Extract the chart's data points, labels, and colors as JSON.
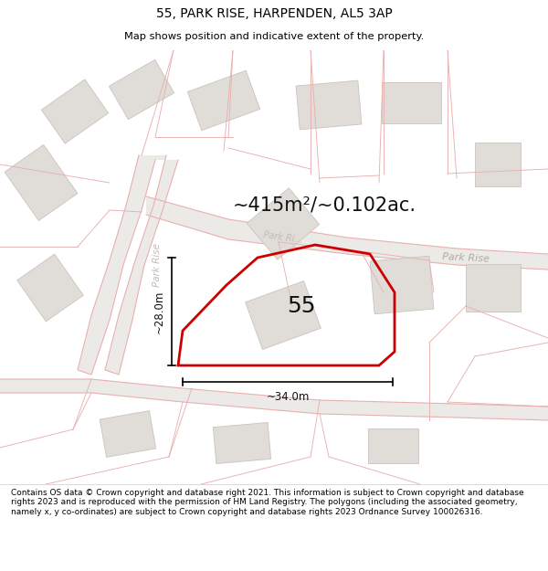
{
  "title": "55, PARK RISE, HARPENDEN, AL5 3AP",
  "subtitle": "Map shows position and indicative extent of the property.",
  "footer": "Contains OS data © Crown copyright and database right 2021. This information is subject to Crown copyright and database rights 2023 and is reproduced with the permission of HM Land Registry. The polygons (including the associated geometry, namely x, y co-ordinates) are subject to Crown copyright and database rights 2023 Ordnance Survey 100026316.",
  "area_label": "~415m²/~0.102ac.",
  "number_label": "55",
  "width_label": "~34.0m",
  "height_label": "~28.0m",
  "road_label_diag": "Park Ri...",
  "road_label_right": "Park Rise",
  "road_label_vert": "Park Rise",
  "map_bg": "#f7f6f4",
  "plot_color": "#cc0000",
  "building_color": "#e0ddd8",
  "building_edge": "#c8c4be",
  "road_line_color": "#e8b0b0",
  "road_bg_color": "#efefed"
}
